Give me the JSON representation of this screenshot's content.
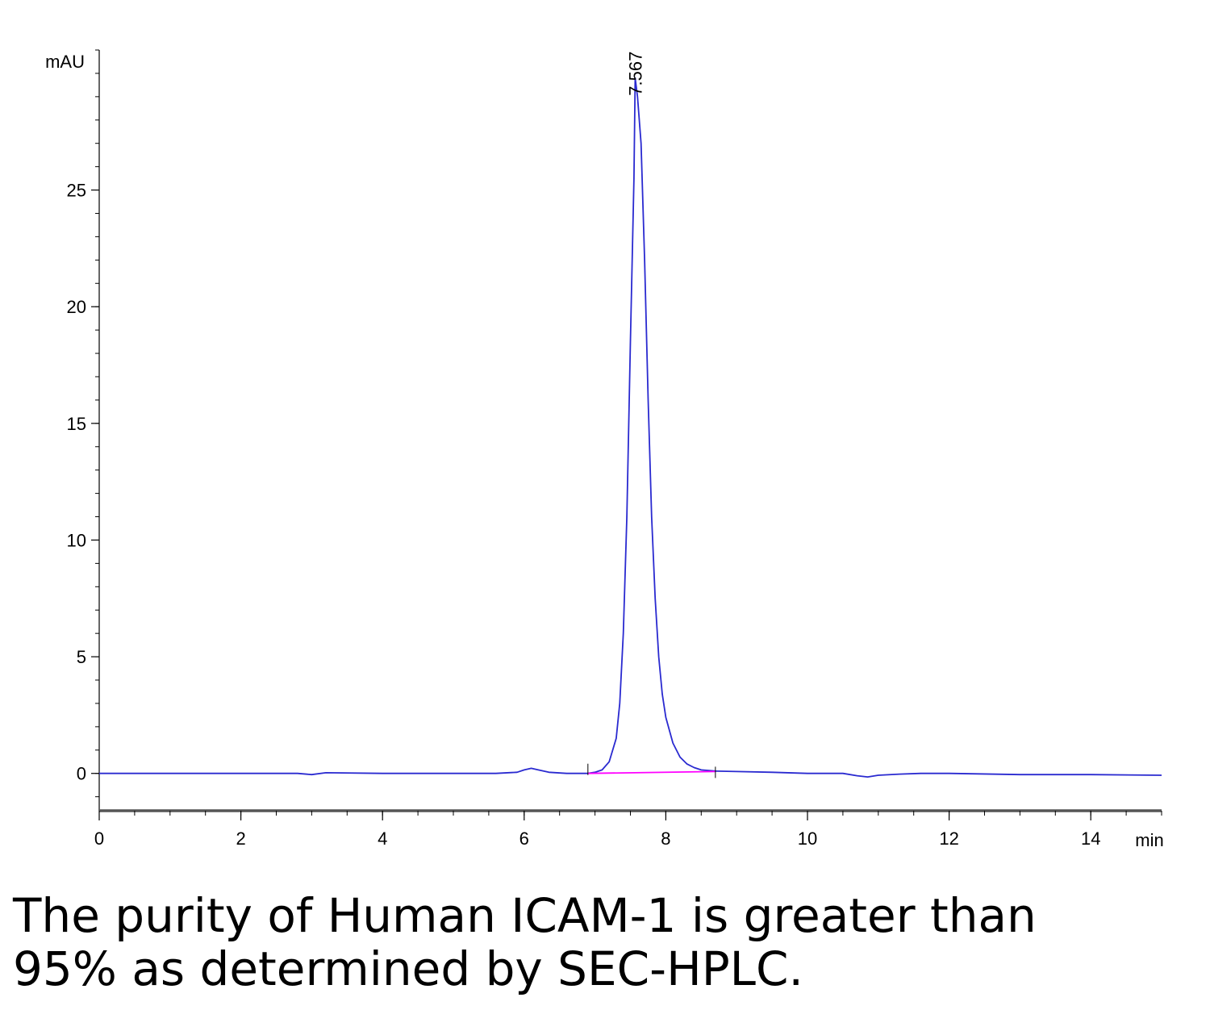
{
  "chart_data": {
    "type": "line",
    "ylabel": "mAU",
    "xlabel": "min",
    "xlim": [
      0,
      15
    ],
    "ylim": [
      -1.6,
      31
    ],
    "x_ticks": [
      0,
      2,
      4,
      6,
      8,
      10,
      12,
      14
    ],
    "y_ticks": [
      0,
      5,
      10,
      15,
      20,
      25
    ],
    "grid": false,
    "peak_annotations": [
      {
        "x": 7.567,
        "y": 29.8,
        "label": "7.567"
      }
    ],
    "series": [
      {
        "color": "#2a2ad0",
        "x": [
          0,
          1,
          2,
          2.8,
          3.0,
          3.2,
          4,
          5,
          5.6,
          5.9,
          6.0,
          6.1,
          6.2,
          6.35,
          6.6,
          6.9,
          7.0,
          7.1,
          7.2,
          7.3,
          7.35,
          7.4,
          7.45,
          7.5,
          7.55,
          7.567,
          7.6,
          7.65,
          7.7,
          7.75,
          7.8,
          7.85,
          7.9,
          7.95,
          8.0,
          8.1,
          8.2,
          8.3,
          8.4,
          8.5,
          8.7,
          9.0,
          9.5,
          10.0,
          10.5,
          10.7,
          10.85,
          11.0,
          11.3,
          11.6,
          12,
          13,
          14,
          15
        ],
        "y": [
          0.0,
          0.0,
          0.0,
          0.0,
          -0.05,
          0.03,
          0.0,
          0.0,
          0.0,
          0.05,
          0.15,
          0.22,
          0.15,
          0.05,
          0.0,
          0.0,
          0.05,
          0.15,
          0.5,
          1.5,
          3.0,
          6.0,
          11.0,
          18.5,
          25.5,
          29.8,
          29.0,
          27.0,
          22.0,
          16.0,
          11.0,
          7.5,
          5.0,
          3.4,
          2.4,
          1.3,
          0.7,
          0.4,
          0.25,
          0.15,
          0.1,
          0.08,
          0.05,
          0.0,
          0.0,
          -0.1,
          -0.15,
          -0.08,
          -0.03,
          0.0,
          0.0,
          -0.05,
          -0.05,
          -0.08
        ]
      },
      {
        "color": "#ff00ff",
        "x": [
          6.9,
          8.7
        ],
        "y": [
          0.0,
          0.08
        ]
      }
    ]
  },
  "caption": {
    "line1": "The purity of Human ICAM-1 is greater than",
    "line2": "95% as determined by SEC-HPLC."
  }
}
